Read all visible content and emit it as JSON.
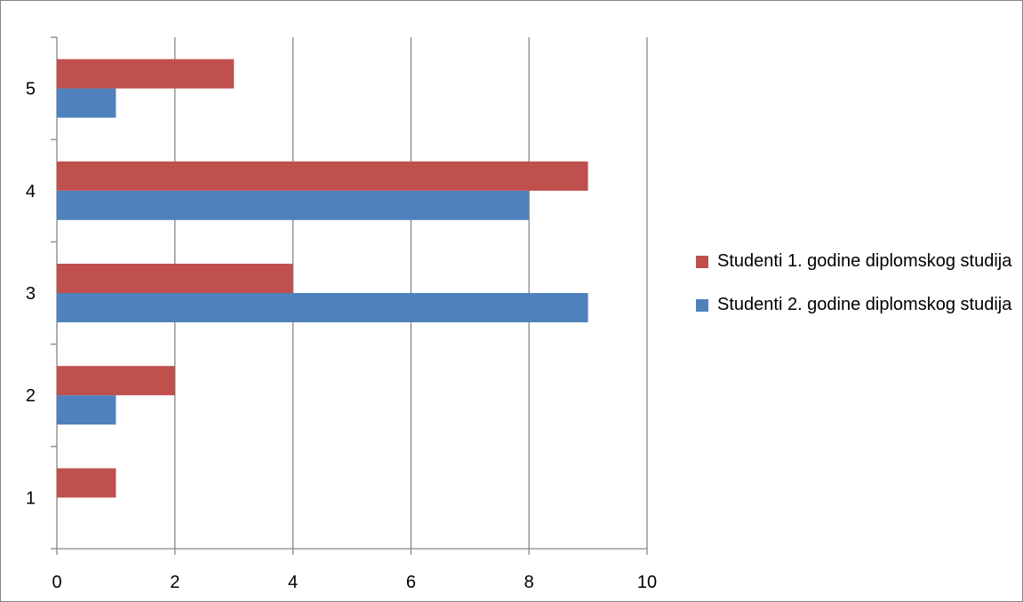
{
  "chart_data": {
    "type": "bar",
    "orientation": "horizontal",
    "categories": [
      "1",
      "2",
      "3",
      "4",
      "5"
    ],
    "series": [
      {
        "name": "Studenti 1. godine diplomskog studija",
        "color": "#c0504d",
        "values": [
          1,
          2,
          4,
          9,
          3
        ]
      },
      {
        "name": "Studenti 2. godine diplomskog studija",
        "color": "#4f81bd",
        "values": [
          0,
          1,
          9,
          8,
          1
        ]
      }
    ],
    "xlim": [
      0,
      10
    ],
    "xticks": [
      "0",
      "2",
      "4",
      "6",
      "8",
      "10"
    ],
    "grid": true,
    "legend_position": "right"
  }
}
